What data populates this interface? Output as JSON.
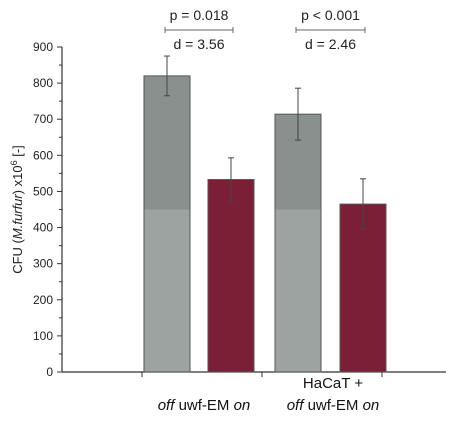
{
  "chart_data": {
    "type": "bar",
    "ylabel": {
      "prefix": "CFU (",
      "italic": "M.furfur",
      "mid": ") x10",
      "sup": "6",
      "suffix": " [-]"
    },
    "ylim": [
      0,
      900
    ],
    "yticks": [
      0,
      100,
      200,
      300,
      400,
      500,
      600,
      700,
      800,
      900
    ],
    "grid": false,
    "groups": [
      {
        "label_lines": [
          [
            {
              "text": "off",
              "italic": true
            },
            {
              "text": " uwf-EM ",
              "italic": false
            },
            {
              "text": "on",
              "italic": true
            }
          ]
        ],
        "bars": [
          {
            "condition": "off",
            "value": 820,
            "error": 55,
            "color": "#8a908e"
          },
          {
            "condition": "on",
            "value": 533,
            "error": 60,
            "color": "#7a1f36"
          }
        ],
        "stats": {
          "p": "p = 0.018",
          "d": "d = 3.56"
        }
      },
      {
        "label_lines": [
          [
            {
              "text": "HaCaT +",
              "italic": false
            }
          ],
          [
            {
              "text": "off",
              "italic": true
            },
            {
              "text": " uwf-EM ",
              "italic": false
            },
            {
              "text": "on",
              "italic": true
            }
          ]
        ],
        "bars": [
          {
            "condition": "off",
            "value": 714,
            "error": 72,
            "color": "#8a908e"
          },
          {
            "condition": "on",
            "value": 465,
            "error": 70,
            "color": "#7a1f36"
          }
        ],
        "stats": {
          "p": "p < 0.001",
          "d": "d = 2.46"
        }
      }
    ]
  }
}
